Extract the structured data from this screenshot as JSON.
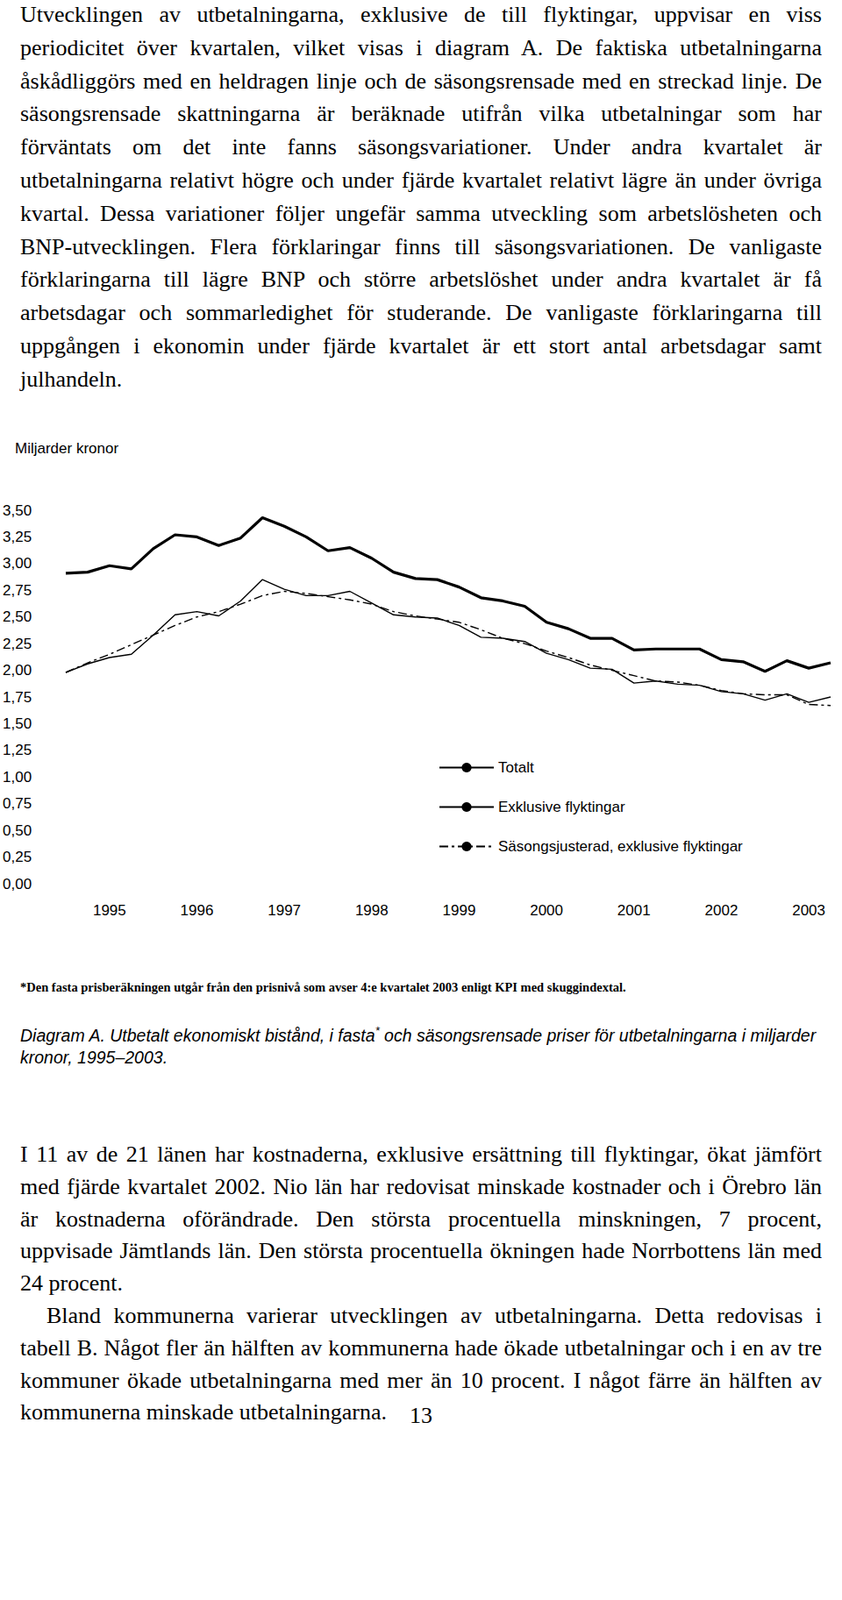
{
  "intro": "Utvecklingen av utbetalningarna, exklusive de till flyktingar, uppvisar en viss periodicitet över kvartalen, vilket visas i diagram A. De faktiska utbetalningarna åskådliggörs med en heldragen linje och de säsongsrensade med en streckad linje. De säsongsrensade skattningarna är beräknade utifrån vilka utbetalningar som har förväntats om det inte fanns säsongsvariationer. Under andra kvartalet är utbetalningarna relativt högre och under fjärde kvartalet relativt lägre än under övriga kvartal. Dessa variationer följer ungefär samma utveckling som arbetslösheten och BNP-utvecklingen. Flera förklaringar finns till säsongsvariationen. De vanligaste förklaringarna till lägre BNP och större arbetslöshet under andra kvartalet är få arbetsdagar och sommarledighet för studerande. De vanligaste förklaringarna till uppgången i ekonomin under fjärde kvartalet är ett stort antal arbetsdagar samt julhandeln.",
  "chart_data": {
    "type": "line",
    "y_label": "Miljarder kronor",
    "categories": [
      null,
      null,
      "1995",
      null,
      null,
      null,
      "1996",
      null,
      null,
      null,
      "1997",
      null,
      null,
      null,
      "1998",
      null,
      null,
      null,
      "1999",
      null,
      null,
      null,
      "2000",
      null,
      null,
      null,
      "2001",
      null,
      null,
      null,
      "2002",
      null,
      null,
      null,
      "2003",
      null
    ],
    "series": [
      {
        "name": "Totalt",
        "color": "#000000",
        "line_style": "solid",
        "values": [
          2.91,
          2.92,
          2.98,
          2.95,
          3.14,
          3.27,
          3.25,
          3.17,
          3.24,
          3.43,
          3.35,
          3.25,
          3.12,
          3.15,
          3.05,
          2.92,
          2.86,
          2.85,
          2.78,
          2.68,
          2.65,
          2.6,
          2.45,
          2.39,
          2.3,
          2.3,
          2.19,
          2.2,
          2.2,
          2.2,
          2.1,
          2.08,
          1.99,
          2.09,
          2.02,
          2.07
        ]
      },
      {
        "name": "Exklusive flyktingar",
        "color": "#000000",
        "line_style": "solid",
        "values": [
          1.98,
          2.06,
          2.12,
          2.15,
          2.33,
          2.52,
          2.55,
          2.51,
          2.65,
          2.85,
          2.76,
          2.7,
          2.7,
          2.74,
          2.63,
          2.52,
          2.5,
          2.49,
          2.42,
          2.31,
          2.3,
          2.27,
          2.16,
          2.1,
          2.02,
          2.01,
          1.88,
          1.9,
          1.87,
          1.86,
          1.8,
          1.78,
          1.72,
          1.78,
          1.7,
          1.75
        ]
      },
      {
        "name": "Säsongsjusterad, exklusive flyktingar",
        "color": "#000000",
        "line_style": "dashdot",
        "values": [
          1.98,
          2.07,
          2.15,
          2.24,
          2.33,
          2.42,
          2.5,
          2.55,
          2.62,
          2.7,
          2.74,
          2.72,
          2.69,
          2.66,
          2.62,
          2.55,
          2.51,
          2.48,
          2.45,
          2.38,
          2.3,
          2.25,
          2.18,
          2.12,
          2.05,
          2.0,
          1.95,
          1.9,
          1.89,
          1.86,
          1.81,
          1.78,
          1.77,
          1.77,
          1.68,
          1.67
        ]
      }
    ],
    "ylim": [
      0,
      3.5
    ],
    "yticks": [
      {
        "value": 0,
        "label": "0,00"
      },
      {
        "value": 0.25,
        "label": "0,25"
      },
      {
        "value": 0.5,
        "label": "0,50"
      },
      {
        "value": 0.75,
        "label": "0,75"
      },
      {
        "value": 1,
        "label": "1,00"
      },
      {
        "value": 1.25,
        "label": "1,25"
      },
      {
        "value": 1.5,
        "label": "1,50"
      },
      {
        "value": 1.75,
        "label": "1,75"
      },
      {
        "value": 2,
        "label": "2,00"
      },
      {
        "value": 2.25,
        "label": "2,25"
      },
      {
        "value": 2.5,
        "label": "2,50"
      },
      {
        "value": 2.75,
        "label": "2,75"
      },
      {
        "value": 3,
        "label": "3,00"
      },
      {
        "value": 3.25,
        "label": "3,25"
      },
      {
        "value": 3.5,
        "label": "3,50"
      }
    ],
    "grid": false,
    "legend": "lower right"
  },
  "footnote": "*Den fasta prisberäkningen utgår från den prisnivå som avser 4:e kvartalet 2003 enligt KPI med skuggindextal.",
  "caption": {
    "before": "Diagram A. Utbetalt ekonomiskt bistånd, i fasta",
    "mark": "*",
    "after": " och säsongsrensade priser för utbetalningarna i miljarder kronor, 1995–2003."
  },
  "paragraphs": [
    {
      "text": "I 11 av de 21 länen har kostnaderna, exklusive ersättning till flyktingar, ökat jämfört med fjärde kvartalet 2002. Nio län har redovisat minskade kostnader och i Örebro län är kostnaderna oförändrade. Den största procentuella minskningen, 7 procent, uppvisade Jämtlands län. Den största procentuella ökningen hade Norrbottens län med 24 procent.",
      "indent": false
    },
    {
      "text": "Bland kommunerna varierar utvecklingen av utbetalningarna. Detta redovisas i tabell B. Något fler än hälften av kommunerna hade ökade utbetalningar och i en av tre kommuner ökade utbetalningarna med mer än 10 procent. I något färre än hälften av kommunerna minskade utbetalningarna.",
      "indent": true
    }
  ],
  "page_number": "13"
}
